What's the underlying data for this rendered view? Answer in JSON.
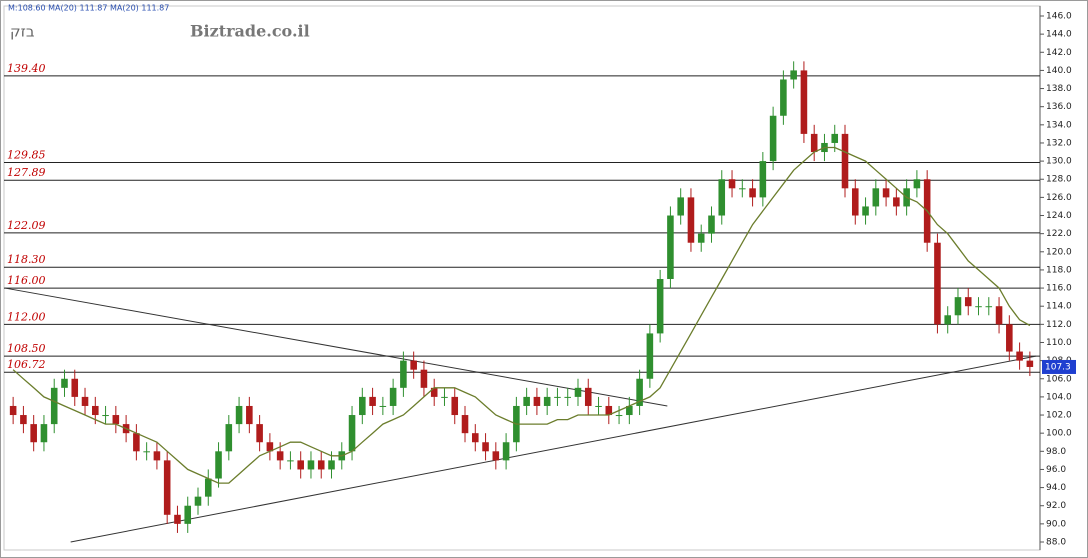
{
  "chart_data": {
    "type": "candlestick",
    "title": "Biztrade.co.il",
    "subtitle": "בזק",
    "header": "M:108.60  MA(20)  111.87  MA(20)  111.87",
    "open": [
      103,
      102,
      101,
      99,
      101,
      105,
      106,
      104,
      103,
      102,
      102,
      101,
      100,
      98,
      98,
      97,
      91,
      90,
      92,
      93,
      95,
      98,
      101,
      103,
      101,
      99,
      98,
      97,
      97,
      96,
      97,
      96,
      97,
      98,
      102,
      104,
      103,
      103,
      105,
      108,
      107,
      105,
      104,
      104,
      102,
      100,
      99,
      98,
      97,
      99,
      103,
      104,
      103,
      104,
      104,
      104,
      105,
      103,
      103,
      102,
      102,
      103,
      106,
      111,
      117,
      124,
      126,
      121,
      122,
      124,
      128,
      127,
      127,
      126,
      130,
      135,
      139,
      140,
      133,
      131,
      132,
      133,
      127,
      124,
      125,
      127,
      126,
      125,
      127,
      128,
      121,
      112,
      113,
      115,
      114,
      114,
      114,
      112,
      109,
      108
    ],
    "high": [
      104,
      103,
      102,
      102,
      106,
      107,
      107,
      105,
      104,
      103,
      103,
      102,
      101,
      99,
      99,
      98,
      92,
      93,
      94,
      96,
      99,
      102,
      104,
      104,
      102,
      100,
      99,
      98,
      98,
      98,
      98,
      98,
      99,
      103,
      105,
      105,
      104,
      106,
      109,
      109,
      108,
      106,
      105,
      105,
      103,
      101,
      100,
      99,
      100,
      104,
      105,
      105,
      105,
      105,
      105,
      106,
      106,
      104,
      104,
      103,
      104,
      107,
      112,
      118,
      125,
      127,
      127,
      123,
      125,
      129,
      129,
      128,
      128,
      131,
      136,
      140,
      141,
      141,
      134,
      133,
      134,
      134,
      128,
      126,
      128,
      128,
      127,
      128,
      129,
      129,
      122,
      114,
      116,
      116,
      115,
      115,
      115,
      113,
      110,
      109
    ],
    "low": [
      101,
      100,
      98,
      98,
      100,
      104,
      103,
      102,
      101,
      101,
      100,
      99,
      97,
      97,
      96,
      90,
      89,
      89,
      91,
      92,
      94,
      97,
      100,
      100,
      98,
      97,
      96,
      96,
      95,
      95,
      95,
      95,
      96,
      97,
      101,
      102,
      102,
      102,
      104,
      106,
      104,
      103,
      103,
      101,
      99,
      98,
      97,
      96,
      96,
      98,
      102,
      102,
      102,
      103,
      103,
      103,
      102,
      102,
      101,
      101,
      101,
      102,
      105,
      110,
      116,
      123,
      120,
      120,
      121,
      123,
      126,
      126,
      125,
      125,
      129,
      134,
      138,
      132,
      130,
      130,
      131,
      126,
      123,
      123,
      124,
      125,
      124,
      124,
      126,
      120,
      111,
      111,
      112,
      113,
      113,
      113,
      111,
      108,
      107,
      106.3
    ],
    "close": [
      102,
      101,
      99,
      101,
      105,
      106,
      104,
      103,
      102,
      102,
      101,
      100,
      98,
      98,
      97,
      91,
      90,
      92,
      93,
      95,
      98,
      101,
      103,
      101,
      99,
      98,
      97,
      97,
      96,
      97,
      96,
      97,
      98,
      102,
      104,
      103,
      103,
      105,
      108,
      107,
      105,
      104,
      104,
      102,
      100,
      99,
      98,
      97,
      99,
      103,
      104,
      103,
      104,
      104,
      104,
      105,
      103,
      103,
      102,
      102,
      103,
      106,
      111,
      117,
      124,
      126,
      121,
      122,
      124,
      128,
      127,
      127,
      126,
      130,
      135,
      139,
      140,
      133,
      131,
      132,
      133,
      127,
      124,
      125,
      127,
      126,
      125,
      127,
      128,
      121,
      112,
      113,
      115,
      114,
      114,
      114,
      112,
      109,
      108,
      107.3
    ],
    "ma": [
      107,
      106,
      105,
      104,
      103.5,
      103,
      102.5,
      102,
      101.5,
      101,
      101,
      100.5,
      100,
      99.5,
      99,
      98,
      97,
      96,
      95.5,
      95,
      94.5,
      94.5,
      95.5,
      96.5,
      97.5,
      98,
      98.5,
      99,
      99,
      98.5,
      98,
      97.5,
      97.5,
      98,
      99,
      100,
      101,
      101.5,
      102,
      103,
      104,
      105,
      105,
      105,
      104.5,
      104,
      103,
      102,
      101.5,
      101,
      101,
      101,
      101,
      101.5,
      101.5,
      102,
      102,
      102,
      102,
      102.5,
      103,
      103.5,
      104,
      105,
      107,
      109,
      111,
      113,
      115,
      117,
      119,
      121,
      123,
      124.5,
      126,
      127.5,
      129,
      130,
      131,
      131.5,
      131.5,
      131,
      130.5,
      130,
      129,
      128,
      127,
      126,
      125.5,
      124.5,
      123,
      122,
      120.5,
      119,
      118,
      117,
      116,
      114,
      112.5,
      111.87
    ],
    "up_color": "#2f8f2f",
    "down_color": "#b01c1c",
    "ma_color": "#6b7d2c",
    "levels": [
      {
        "value": 139.4,
        "label": "139.40"
      },
      {
        "value": 129.85,
        "label": "129.85"
      },
      {
        "value": 127.89,
        "label": "127.89"
      },
      {
        "value": 122.09,
        "label": "122.09"
      },
      {
        "value": 118.3,
        "label": "118.30"
      },
      {
        "value": 116,
        "label": "116.00"
      },
      {
        "value": 112,
        "label": "112.00"
      },
      {
        "value": 108.5,
        "label": "108.50"
      },
      {
        "value": 106.72,
        "label": "106.72"
      }
    ],
    "trendlines": [
      {
        "x": [
          -0.8,
          63.7
        ],
        "y": [
          116,
          103
        ]
      },
      {
        "x": [
          5.6,
          99.6
        ],
        "y": [
          88,
          108.5
        ]
      }
    ],
    "last_price": {
      "value": 107.3,
      "label": "107.3"
    },
    "ylim": [
      88,
      146
    ],
    "yticks": [
      {
        "value": 88,
        "label": "88.0"
      },
      {
        "value": 90,
        "label": "90.0"
      },
      {
        "value": 92,
        "label": "92.0"
      },
      {
        "value": 94,
        "label": "94.0"
      },
      {
        "value": 96,
        "label": "96.0"
      },
      {
        "value": 98,
        "label": "98.0"
      },
      {
        "value": 100,
        "label": "100.0"
      },
      {
        "value": 102,
        "label": "102.0"
      },
      {
        "value": 104,
        "label": "104.0"
      },
      {
        "value": 106,
        "label": "106.0"
      },
      {
        "value": 108,
        "label": "108.0"
      },
      {
        "value": 110,
        "label": "110.0"
      },
      {
        "value": 112,
        "label": "112.0"
      },
      {
        "value": 114,
        "label": "114.0"
      },
      {
        "value": 116,
        "label": "116.0"
      },
      {
        "value": 118,
        "label": "118.0"
      },
      {
        "value": 120,
        "label": "120.0"
      },
      {
        "value": 122,
        "label": "122.0"
      },
      {
        "value": 124,
        "label": "124.0"
      },
      {
        "value": 126,
        "label": "126.0"
      },
      {
        "value": 128,
        "label": "128.0"
      },
      {
        "value": 130,
        "label": "130.0"
      },
      {
        "value": 132,
        "label": "132.0"
      },
      {
        "value": 134,
        "label": "134.0"
      },
      {
        "value": 136,
        "label": "136.0"
      },
      {
        "value": 138,
        "label": "138.0"
      },
      {
        "value": 140,
        "label": "140.0"
      },
      {
        "value": 142,
        "label": "142.0"
      },
      {
        "value": 144,
        "label": "144.0"
      },
      {
        "value": 146,
        "label": "146.0"
      }
    ]
  }
}
